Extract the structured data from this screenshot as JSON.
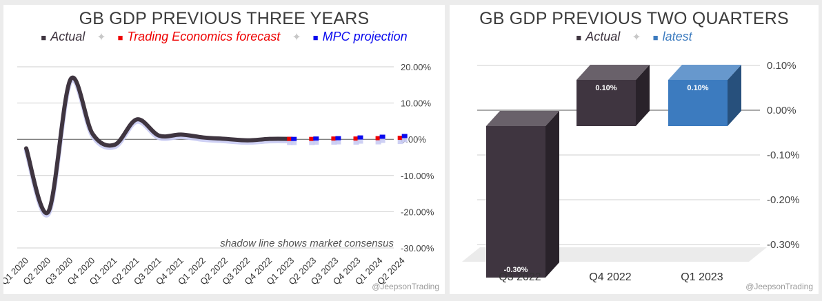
{
  "chart_data": [
    {
      "type": "line",
      "title": "GB GDP PREVIOUS THREE YEARS",
      "x": [
        "Q1 2020",
        "Q2 2020",
        "Q3 2020",
        "Q4 2020",
        "Q1 2021",
        "Q2 2021",
        "Q3 2021",
        "Q4 2021",
        "Q1 2022",
        "Q2 2022",
        "Q3 2022",
        "Q4 2022",
        "Q1 2023",
        "Q2 2023",
        "Q3 2023",
        "Q4 2023",
        "Q1 2024",
        "Q2 2024"
      ],
      "ylim": [
        -30,
        20
      ],
      "yticks": [
        "20.00%",
        "10.00%",
        "0.00%",
        "-10.00%",
        "-20.00%",
        "-30.00%"
      ],
      "series": [
        {
          "name": "Actual",
          "color": "#3f3540",
          "values": [
            -2.5,
            -20.0,
            16.5,
            1.5,
            -1.5,
            5.5,
            1.0,
            1.3,
            0.5,
            0.1,
            -0.3,
            0.1,
            0.1,
            null,
            null,
            null,
            null,
            null
          ]
        },
        {
          "name": "Trading Economics forecast",
          "color": "#ee0000",
          "values": [
            null,
            null,
            null,
            null,
            null,
            null,
            null,
            null,
            null,
            null,
            null,
            null,
            0.1,
            0.1,
            0.2,
            0.2,
            0.3,
            0.4
          ]
        },
        {
          "name": "MPC projection",
          "color": "#0a0aee",
          "values": [
            null,
            null,
            null,
            null,
            null,
            null,
            null,
            null,
            null,
            null,
            null,
            null,
            0.1,
            0.2,
            0.3,
            0.5,
            0.7,
            0.9
          ]
        }
      ],
      "shadow_color": "#c9cbf3",
      "annotation": "shadow line shows market consensus",
      "credit": "@JeepsonTrading",
      "grid": true,
      "legend_position": "top"
    },
    {
      "type": "bar",
      "title": "GB GDP PREVIOUS TWO QUARTERS",
      "categories": [
        "Q3 2022",
        "Q4 2022",
        "Q1 2023"
      ],
      "values": [
        -0.3,
        0.1,
        0.1
      ],
      "data_labels": [
        "-0.30%",
        "0.10%",
        "0.10%"
      ],
      "bar_colors": [
        "#3f3540",
        "#3f3540",
        "#3c7bbf"
      ],
      "legend": [
        {
          "name": "Actual",
          "color": "#3f3540"
        },
        {
          "name": "latest",
          "color": "#3c7bbf"
        }
      ],
      "ylim": [
        -0.3,
        0.1
      ],
      "yticks": [
        "0.10%",
        "0.00%",
        "-0.10%",
        "-0.20%",
        "-0.30%"
      ],
      "credit": "@JeepsonTrading",
      "grid": true,
      "legend_position": "top"
    }
  ]
}
